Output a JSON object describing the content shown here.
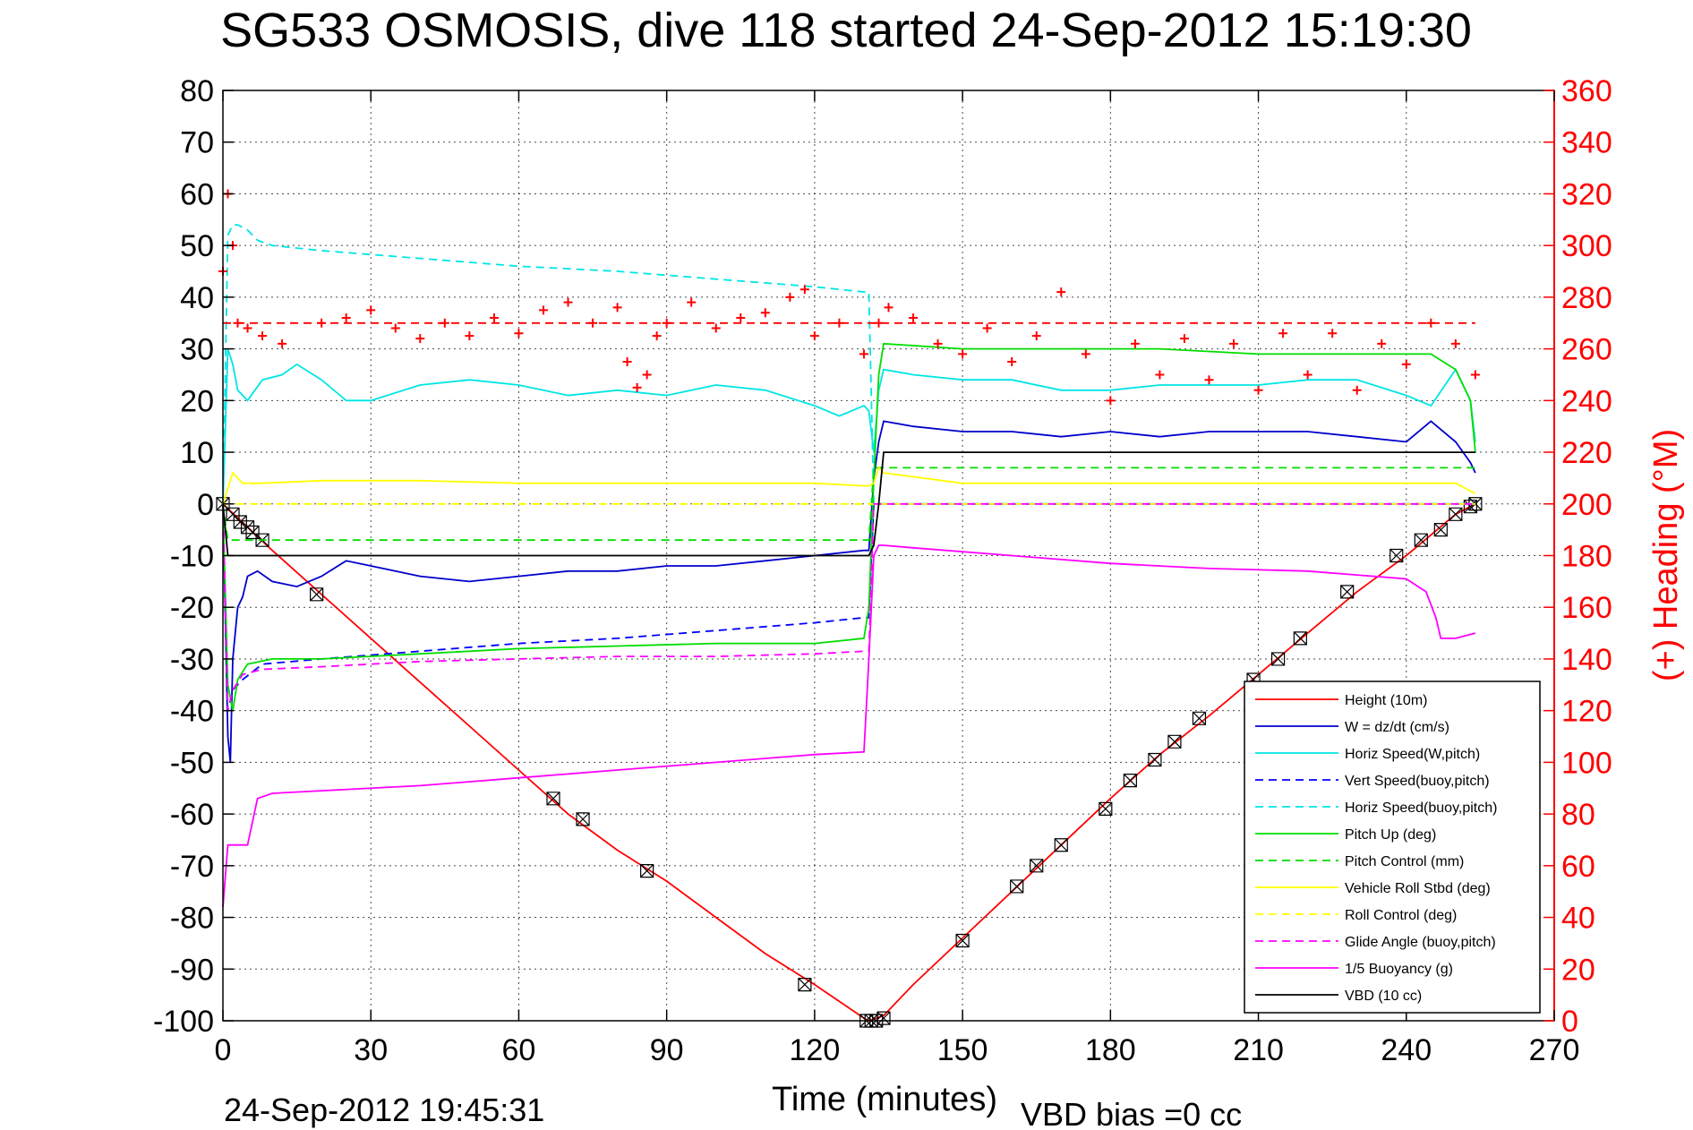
{
  "chart_data": {
    "type": "line",
    "title": "SG533 OSMOSIS, dive 118 started 24-Sep-2012 15:19:30",
    "xlabel": "Time (minutes)",
    "ylabel": "",
    "y2label": "(+) Heading (°M)",
    "footer_left": "24-Sep-2012 19:45:31",
    "footer_right": "VBD bias =0 cc",
    "xlim": [
      0,
      270
    ],
    "ylim": [
      -100,
      80
    ],
    "y2lim": [
      0,
      360
    ],
    "xticks": [
      0,
      30,
      60,
      90,
      120,
      150,
      180,
      210,
      240,
      270
    ],
    "yticks": [
      -100,
      -90,
      -80,
      -70,
      -60,
      -50,
      -40,
      -30,
      -20,
      -10,
      0,
      10,
      20,
      30,
      40,
      50,
      60,
      70,
      80
    ],
    "y2ticks": [
      0,
      20,
      40,
      60,
      80,
      100,
      120,
      140,
      160,
      180,
      200,
      220,
      240,
      260,
      280,
      300,
      320,
      340,
      360
    ],
    "grid": true,
    "legend_position": "bottom-right",
    "colors": {
      "axis_right": "#ff0000"
    },
    "series": [
      {
        "name": "Height (10m)",
        "color": "#ff0000",
        "style": "solid",
        "x": [
          0,
          10,
          20,
          30,
          40,
          50,
          60,
          70,
          80,
          90,
          100,
          110,
          120,
          130,
          131,
          134,
          140,
          150,
          160,
          170,
          180,
          190,
          200,
          210,
          220,
          230,
          240,
          250,
          254
        ],
        "y": [
          0,
          -9,
          -17.5,
          -26,
          -34.5,
          -43,
          -51.5,
          -60,
          -67,
          -73,
          -80,
          -87,
          -93,
          -99.5,
          -100,
          -99,
          -93,
          -84,
          -75,
          -66,
          -57,
          -48.5,
          -41,
          -33,
          -25,
          -17,
          -10,
          -2,
          0
        ],
        "markers_x": [
          0,
          2,
          3.5,
          5,
          6,
          8,
          19,
          67,
          73,
          86,
          118,
          130.5,
          131.5,
          132.5,
          134,
          150,
          161,
          165,
          170,
          179,
          184,
          189,
          193,
          198,
          209,
          214,
          218.5,
          228,
          238,
          243,
          247,
          250,
          253,
          254
        ],
        "markers_y": [
          0,
          -2,
          -3.5,
          -4.5,
          -5.5,
          -7,
          -17.5,
          -57,
          -61,
          -71,
          -93,
          -100,
          -100,
          -100,
          -99.5,
          -84.5,
          -74,
          -70,
          -66,
          -59,
          -53.5,
          -49.5,
          -46,
          -41.5,
          -34,
          -30,
          -26,
          -17,
          -10,
          -7,
          -5,
          -2,
          -0.5,
          0
        ]
      },
      {
        "name": "W = dz/dt (cm/s)",
        "color": "#0000cc",
        "style": "solid",
        "x": [
          0,
          1,
          1.5,
          2,
          3,
          4,
          5,
          7,
          10,
          15,
          20,
          25,
          30,
          40,
          50,
          60,
          70,
          80,
          90,
          100,
          110,
          120,
          130,
          131,
          132,
          133,
          134,
          140,
          150,
          160,
          170,
          180,
          190,
          200,
          210,
          220,
          230,
          240,
          245,
          250,
          253,
          254
        ],
        "y": [
          0,
          -45,
          -50,
          -30,
          -20,
          -18,
          -14,
          -13,
          -15,
          -16,
          -14,
          -11,
          -12,
          -14,
          -15,
          -14,
          -13,
          -13,
          -12,
          -12,
          -11,
          -10,
          -9,
          -9,
          5,
          12,
          16,
          15,
          14,
          14,
          13,
          14,
          13,
          14,
          14,
          14,
          13,
          12,
          16,
          12,
          8,
          6
        ]
      },
      {
        "name": "Horiz Speed(W,pitch)",
        "color": "#00e5e5",
        "style": "solid",
        "x": [
          0,
          1,
          2,
          3,
          5,
          8,
          12,
          15,
          20,
          25,
          30,
          40,
          50,
          60,
          70,
          80,
          90,
          100,
          110,
          120,
          125,
          130,
          131,
          132,
          133,
          134,
          140,
          150,
          160,
          170,
          180,
          190,
          200,
          210,
          220,
          230,
          240,
          245,
          250,
          253,
          254
        ],
        "y": [
          0,
          30,
          27,
          22,
          20,
          24,
          25,
          27,
          24,
          20,
          20,
          23,
          24,
          23,
          21,
          22,
          21,
          23,
          22,
          19,
          17,
          19,
          18,
          10,
          22,
          26,
          25,
          24,
          24,
          22,
          22,
          23,
          23,
          23,
          24,
          24,
          21,
          19,
          26,
          20,
          12
        ]
      },
      {
        "name": "Vert Speed(buoy,pitch)",
        "color": "#0000ff",
        "style": "dashed",
        "x": [
          0,
          1,
          2,
          4,
          8,
          20,
          40,
          60,
          80,
          100,
          120,
          130,
          131,
          132,
          134,
          254
        ],
        "y": [
          0,
          -40,
          -36,
          -34,
          -31,
          -30,
          -28.5,
          -27,
          -26,
          -24.5,
          -23,
          -22,
          -22,
          0,
          0,
          0
        ]
      },
      {
        "name": "Horiz Speed(buoy,pitch)",
        "color": "#00e5e5",
        "style": "dashed",
        "x": [
          0,
          1,
          2,
          3,
          5,
          7,
          10,
          20,
          40,
          60,
          80,
          100,
          120,
          130,
          131,
          132,
          254
        ],
        "y": [
          0,
          52,
          54,
          54,
          53,
          51,
          50,
          49,
          47.5,
          46,
          45,
          43.5,
          42,
          41,
          41,
          0,
          0
        ]
      },
      {
        "name": "Pitch Up (deg)",
        "color": "#00dd00",
        "style": "solid",
        "x": [
          0,
          1,
          2,
          3,
          5,
          10,
          20,
          40,
          60,
          80,
          100,
          120,
          130,
          131,
          132,
          133,
          134,
          150,
          170,
          190,
          210,
          230,
          245,
          250,
          253,
          254
        ],
        "y": [
          0,
          -35,
          -40,
          -34,
          -31,
          -30,
          -30,
          -29,
          -28,
          -27.5,
          -27,
          -27,
          -26,
          -20,
          5,
          25,
          31,
          30,
          30,
          30,
          29,
          29,
          29,
          26,
          20,
          10
        ]
      },
      {
        "name": "Pitch Control (mm)",
        "color": "#00dd00",
        "style": "dashed",
        "x": [
          0,
          1,
          2,
          130,
          131,
          132,
          133,
          134,
          254
        ],
        "y": [
          0,
          -7,
          -7,
          -7,
          -7,
          7,
          7,
          7,
          7
        ]
      },
      {
        "name": "Vehicle Roll Stbd (deg)",
        "color": "#ffff00",
        "style": "solid",
        "x": [
          0,
          1,
          2,
          4,
          8,
          20,
          40,
          60,
          80,
          100,
          120,
          130,
          131,
          132,
          133,
          134,
          150,
          170,
          190,
          210,
          230,
          250,
          254
        ],
        "y": [
          0,
          3,
          6,
          4,
          4,
          4.5,
          4.5,
          4,
          4,
          4,
          4,
          3.5,
          3.5,
          4,
          7,
          6,
          4,
          4,
          4,
          4,
          4,
          4,
          2
        ]
      },
      {
        "name": "Roll Control (deg)",
        "color": "#ffff00",
        "style": "dashed",
        "x": [
          0,
          254
        ],
        "y": [
          0,
          0
        ]
      },
      {
        "name": "Glide Angle (buoy,pitch)",
        "color": "#ff00ff",
        "style": "dashed",
        "x": [
          0,
          1,
          2,
          4,
          8,
          20,
          40,
          60,
          80,
          100,
          120,
          130,
          131,
          132,
          254
        ],
        "y": [
          0,
          -40,
          -36,
          -33,
          -32,
          -31.5,
          -30.5,
          -30,
          -29.5,
          -29.5,
          -29,
          -28.5,
          -28.5,
          0,
          0
        ]
      },
      {
        "name": "1/5 Buoyancy (g)",
        "color": "#ff00ff",
        "style": "solid",
        "x": [
          0,
          1,
          3,
          5,
          7,
          10,
          20,
          40,
          60,
          80,
          100,
          120,
          130,
          131,
          132,
          133,
          134,
          140,
          160,
          180,
          200,
          220,
          240,
          244,
          246,
          247,
          250,
          254
        ],
        "y": [
          -78,
          -66,
          -66,
          -66,
          -57,
          -56,
          -55.5,
          -54.5,
          -53,
          -51.5,
          -50,
          -48.5,
          -48,
          -30,
          -10,
          -8,
          -8,
          -8.5,
          -10,
          -11.5,
          -12.5,
          -13,
          -14.5,
          -17,
          -22,
          -26,
          -26,
          -25
        ]
      },
      {
        "name": "VBD (10 cc)",
        "color": "#000000",
        "style": "solid",
        "x": [
          0,
          1,
          2,
          130,
          131,
          132,
          133,
          134,
          254
        ],
        "y": [
          0,
          -10,
          -10,
          -10,
          -10,
          -8,
          0,
          10,
          10
        ]
      },
      {
        "name": "",
        "color": "#ff0000",
        "style": "markers",
        "axis": "right",
        "x": [
          0,
          1,
          2,
          3,
          5,
          8,
          12,
          20,
          25,
          30,
          35,
          40,
          45,
          50,
          55,
          60,
          65,
          70,
          75,
          80,
          82,
          84,
          86,
          88,
          90,
          95,
          100,
          105,
          110,
          115,
          118,
          120,
          125,
          130,
          133,
          135,
          140,
          145,
          150,
          155,
          160,
          165,
          170,
          175,
          180,
          185,
          190,
          195,
          200,
          205,
          210,
          215,
          220,
          225,
          230,
          235,
          240,
          245,
          250,
          254
        ],
        "y": [
          290,
          320,
          300,
          270,
          268,
          265,
          262,
          270,
          272,
          275,
          268,
          264,
          270,
          265,
          272,
          266,
          275,
          278,
          270,
          276,
          255,
          245,
          250,
          265,
          270,
          278,
          268,
          272,
          274,
          280,
          283,
          265,
          270,
          258,
          270,
          276,
          272,
          262,
          258,
          268,
          255,
          265,
          282,
          258,
          240,
          262,
          250,
          264,
          248,
          262,
          244,
          266,
          250,
          266,
          244,
          262,
          254,
          270,
          262,
          250
        ]
      },
      {
        "name": "",
        "color": "#ff0000",
        "style": "dashed",
        "axis": "right",
        "x": [
          0,
          254
        ],
        "y": [
          270,
          270
        ]
      }
    ]
  }
}
